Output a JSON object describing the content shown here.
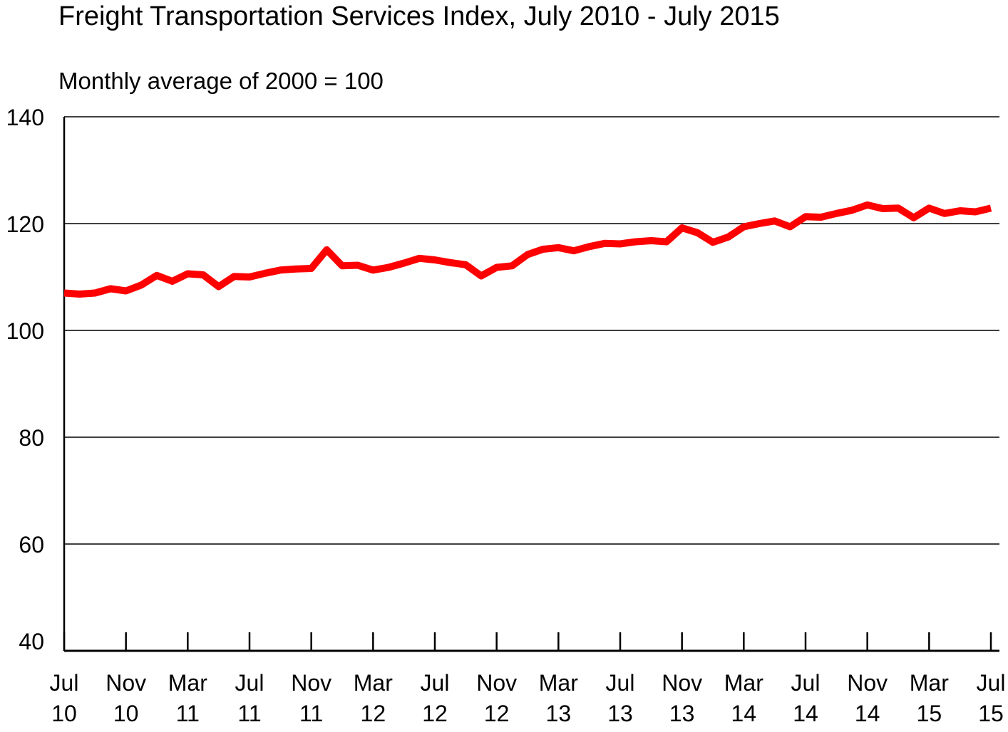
{
  "chart_data": {
    "type": "line",
    "title": "Freight Transportation Services Index, July 2010 - July 2015",
    "subtitle": "Monthly average of 2000 = 100",
    "xlabel": "",
    "ylabel": "",
    "ylim": [
      40,
      140
    ],
    "yticks": [
      40,
      60,
      80,
      100,
      120,
      140
    ],
    "grid": true,
    "legend": "none",
    "colors": {
      "line": "#ff0000",
      "axis": "#000000",
      "grid": "#000000"
    },
    "xticks": [
      {
        "month": 0,
        "label": [
          "Jul",
          "10"
        ]
      },
      {
        "month": 4,
        "label": [
          "Nov",
          "10"
        ]
      },
      {
        "month": 8,
        "label": [
          "Mar",
          "11"
        ]
      },
      {
        "month": 12,
        "label": [
          "Jul",
          "11"
        ]
      },
      {
        "month": 16,
        "label": [
          "Nov",
          "11"
        ]
      },
      {
        "month": 20,
        "label": [
          "Mar",
          "12"
        ]
      },
      {
        "month": 24,
        "label": [
          "Jul",
          "12"
        ]
      },
      {
        "month": 28,
        "label": [
          "Nov",
          "12"
        ]
      },
      {
        "month": 32,
        "label": [
          "Mar",
          "13"
        ]
      },
      {
        "month": 36,
        "label": [
          "Jul",
          "13"
        ]
      },
      {
        "month": 40,
        "label": [
          "Nov",
          "13"
        ]
      },
      {
        "month": 44,
        "label": [
          "Mar",
          "14"
        ]
      },
      {
        "month": 48,
        "label": [
          "Jul",
          "14"
        ]
      },
      {
        "month": 52,
        "label": [
          "Nov",
          "14"
        ]
      },
      {
        "month": 56,
        "label": [
          "Mar",
          "15"
        ]
      },
      {
        "month": 60,
        "label": [
          "Jul",
          "15"
        ]
      }
    ],
    "series": [
      {
        "values": [
          107.0,
          106.8,
          107.0,
          107.8,
          107.4,
          108.5,
          110.3,
          109.2,
          110.6,
          110.4,
          108.2,
          110.1,
          110.0,
          110.7,
          111.3,
          111.5,
          111.6,
          115.1,
          112.1,
          112.2,
          111.3,
          111.8,
          112.6,
          113.5,
          113.2,
          112.7,
          112.3,
          110.2,
          111.8,
          112.1,
          114.2,
          115.2,
          115.5,
          114.9,
          115.7,
          116.3,
          116.2,
          116.6,
          116.8,
          116.6,
          119.2,
          118.3,
          116.5,
          117.5,
          119.4,
          120.0,
          120.5,
          119.4,
          121.3,
          121.2,
          121.9,
          122.5,
          123.5,
          122.8,
          122.9,
          121.1,
          122.9,
          121.9,
          122.4,
          122.2,
          122.9
        ]
      }
    ]
  }
}
